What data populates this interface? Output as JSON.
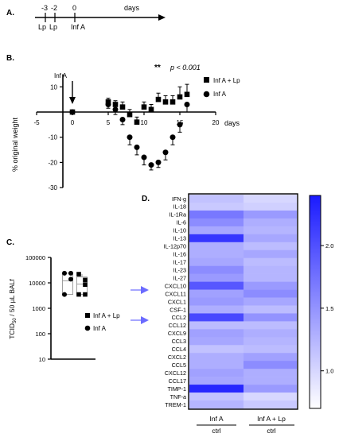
{
  "panels": {
    "A": {
      "letter": "A.",
      "ticks": [
        "-3",
        "-2",
        "0"
      ],
      "days_label": "days",
      "markers": [
        "Lp",
        "Lp",
        "Inf A"
      ]
    },
    "B": {
      "letter": "B."
    },
    "C": {
      "letter": "C."
    },
    "D": {
      "letter": "D."
    }
  },
  "chart_data": [
    {
      "type": "scatter",
      "panel": "B",
      "ylabel": "% original weight",
      "xlabel": "days",
      "xlim": [
        -5,
        20
      ],
      "ylim": [
        -30,
        15
      ],
      "xticks": [
        -5,
        0,
        5,
        10,
        15,
        20
      ],
      "yticks": [
        -30,
        -20,
        -10,
        10
      ],
      "annotation_arrow": "Inf A",
      "significance": {
        "stars": "**",
        "text": "p < 0.001"
      },
      "series": [
        {
          "name": "Inf A + Lp",
          "marker": "square",
          "points": [
            {
              "x": 0,
              "y": 0,
              "err": 0
            },
            {
              "x": 5,
              "y": 4,
              "err": 1.5
            },
            {
              "x": 6,
              "y": 3,
              "err": 1.5
            },
            {
              "x": 7,
              "y": 2,
              "err": 2
            },
            {
              "x": 8,
              "y": -1,
              "err": 2
            },
            {
              "x": 9,
              "y": -4,
              "err": 2
            },
            {
              "x": 10,
              "y": 2,
              "err": 2
            },
            {
              "x": 11,
              "y": 1,
              "err": 2
            },
            {
              "x": 12,
              "y": 5,
              "err": 2.5
            },
            {
              "x": 13,
              "y": 4,
              "err": 2.5
            },
            {
              "x": 14,
              "y": 4,
              "err": 2.5
            },
            {
              "x": 15,
              "y": 6,
              "err": 4
            },
            {
              "x": 16,
              "y": 7,
              "err": 4
            }
          ]
        },
        {
          "name": "Inf A",
          "marker": "circle",
          "points": [
            {
              "x": 0,
              "y": 0,
              "err": 0
            },
            {
              "x": 5,
              "y": 3,
              "err": 1.5
            },
            {
              "x": 6,
              "y": 1,
              "err": 2
            },
            {
              "x": 7,
              "y": -3,
              "err": 2
            },
            {
              "x": 8,
              "y": -10,
              "err": 3
            },
            {
              "x": 9,
              "y": -14,
              "err": 3
            },
            {
              "x": 10,
              "y": -18,
              "err": 3
            },
            {
              "x": 11,
              "y": -21,
              "err": 2
            },
            {
              "x": 12,
              "y": -20,
              "err": 2
            },
            {
              "x": 13,
              "y": -16,
              "err": 3
            },
            {
              "x": 14,
              "y": -10,
              "err": 3
            },
            {
              "x": 15,
              "y": -5,
              "err": 3
            },
            {
              "x": 16,
              "y": 3,
              "err": 3
            }
          ]
        }
      ]
    },
    {
      "type": "box",
      "panel": "C",
      "ylabel_main": "TCID",
      "ylabel_sub": "50",
      "ylabel_rest": " / 50 µL BALf",
      "yscale": "log",
      "ylim": [
        10,
        100000
      ],
      "yticks": [
        "10",
        "100",
        "1000",
        "10000",
        "100000"
      ],
      "ytick_values": [
        10,
        100,
        1000,
        10000,
        100000
      ],
      "series": [
        {
          "name": "Inf A + Lp",
          "marker": "square",
          "points": [
            22000,
            13000,
            8500,
            3500,
            3500
          ],
          "box": {
            "min": 3500,
            "q1": 3500,
            "median": 9000,
            "q3": 17000,
            "max": 22000
          }
        },
        {
          "name": "Inf A",
          "marker": "circle",
          "points": [
            24000,
            24000,
            14000,
            3500
          ],
          "box": {
            "min": 3500,
            "q1": 3500,
            "median": 12000,
            "q3": 24000,
            "max": 24000
          }
        }
      ]
    },
    {
      "type": "heatmap",
      "panel": "D",
      "rows": [
        "IFN-g",
        "IL-18",
        "IL-1Ra",
        "IL-6",
        "IL-10",
        "IL-13",
        "IL-12p70",
        "IL-16",
        "IL-17",
        "IL-23",
        "IL-27",
        "CXCL10",
        "CXCL11",
        "CXCL1",
        "CSF-1",
        "CCL2",
        "CCL12",
        "CXCL9",
        "CCL3",
        "CCL4",
        "CXCL2",
        "CCL5",
        "CXCL12",
        "CCL17",
        "TIMP-1",
        "TNF-a",
        "TREM-1"
      ],
      "highlighted_rows": [
        "CXCL10",
        "CCL2"
      ],
      "columns": [
        {
          "top": "Inf A",
          "bottom": "ctrl"
        },
        {
          "top": "Inf A + Lp",
          "bottom": "ctrl"
        }
      ],
      "values": [
        [
          1.15,
          1.0
        ],
        [
          1.1,
          1.05
        ],
        [
          1.7,
          1.45
        ],
        [
          1.55,
          1.3
        ],
        [
          1.35,
          1.25
        ],
        [
          2.2,
          1.35
        ],
        [
          1.3,
          1.2
        ],
        [
          1.3,
          1.35
        ],
        [
          1.35,
          1.2
        ],
        [
          1.55,
          1.25
        ],
        [
          1.45,
          1.25
        ],
        [
          1.95,
          1.45
        ],
        [
          1.4,
          1.55
        ],
        [
          1.45,
          1.35
        ],
        [
          1.3,
          1.2
        ],
        [
          2.05,
          1.5
        ],
        [
          1.2,
          1.2
        ],
        [
          1.4,
          1.3
        ],
        [
          1.35,
          1.25
        ],
        [
          1.15,
          1.2
        ],
        [
          1.3,
          1.4
        ],
        [
          1.3,
          1.55
        ],
        [
          1.4,
          1.3
        ],
        [
          1.35,
          1.3
        ],
        [
          2.3,
          1.45
        ],
        [
          1.15,
          1.0
        ],
        [
          1.25,
          1.1
        ]
      ],
      "colorbar": {
        "min": 0.7,
        "max": 2.4,
        "ticks": [
          "1.0",
          "1.5",
          "2.0"
        ],
        "tick_values": [
          1.0,
          1.5,
          2.0
        ],
        "low_color": "#ffffff",
        "high_color": "#1a1aff"
      }
    }
  ]
}
